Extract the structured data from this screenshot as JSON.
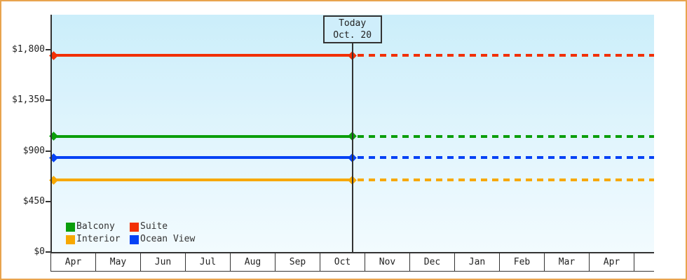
{
  "chart_data": {
    "type": "line",
    "title": "",
    "description": "Cruise cabin price history: constant price per cabin category, solid line before today, dotted projection after today",
    "x_categories": [
      "Apr",
      "May",
      "Jun",
      "Jul",
      "Aug",
      "Sep",
      "Oct",
      "Nov",
      "Dec",
      "Jan",
      "Feb",
      "Mar",
      "Apr"
    ],
    "y_axis": {
      "tick_labels": [
        "$0",
        "$450",
        "$900",
        "$1,350",
        "$1,800"
      ],
      "tick_values": [
        0,
        450,
        900,
        1350,
        1800
      ],
      "ylim": [
        0,
        2110
      ],
      "grid": false
    },
    "series": [
      {
        "name": "Balcony",
        "color": "#0b9e0b",
        "value": 1029
      },
      {
        "name": "Suite",
        "color": "#f23005",
        "value": 1749
      },
      {
        "name": "Interior",
        "color": "#f7a800",
        "value": 639
      },
      {
        "name": "Ocean View",
        "color": "#0542f5",
        "value": 839
      }
    ],
    "today_marker": {
      "line1": "Today",
      "line2": "Oct. 20",
      "x_fraction": 0.499
    },
    "legend": {
      "position": "inside-bottom-left",
      "entries": [
        "Balcony",
        "Suite",
        "Interior",
        "Ocean View"
      ]
    },
    "styles": {
      "plot_bg_top": "#cbeefa",
      "plot_bg_bottom": "#f2fbfe",
      "axis_color": "#333333",
      "text_color": "#222222",
      "outer_border_color": "#e8a44e",
      "today_box_bg": "#cfeefb"
    }
  }
}
